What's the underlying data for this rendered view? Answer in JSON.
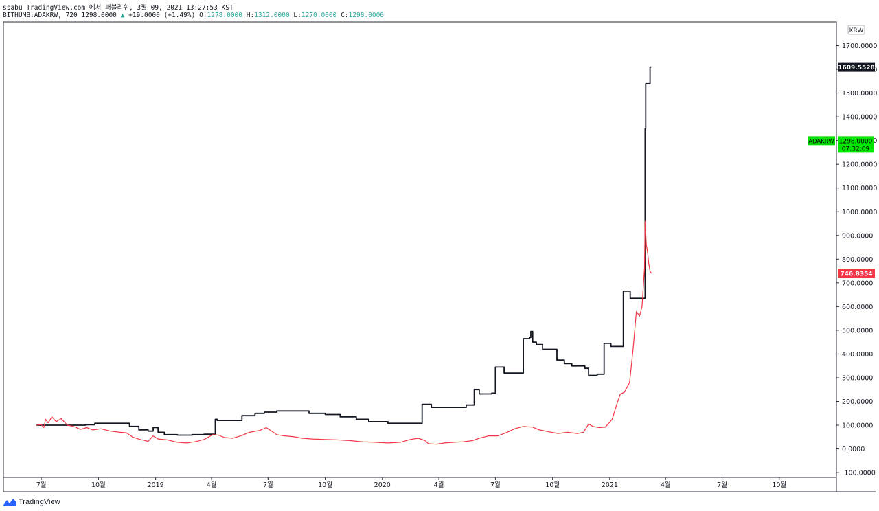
{
  "header": {
    "publish_line": "ssabu TradingView.com 에서 퍼블리쉬, 3월 09, 2021 13:27:53 KST",
    "symbol": "BITHUMB:ADAKRW, 720",
    "last": "1298.0000",
    "change_icon": "up-triangle-icon",
    "change": "+19.0000 (+1.49%)",
    "open_label": "O:",
    "open": "1278.0000",
    "high_label": "H:",
    "high": "1312.0000",
    "low_label": "L:",
    "low": "1270.0000",
    "close_label": "C:",
    "close": "1298.0000"
  },
  "footer": {
    "logo_text": "TradingView",
    "logo_icon": "tradingview-logo-icon"
  },
  "colors": {
    "main_series": "#131722",
    "compare_series": "#f23645",
    "current_price_badge": "#00e600",
    "up": "#26a69a"
  },
  "chart_data": {
    "type": "line",
    "title": "",
    "currency": "KRW",
    "y_axis_side": "right",
    "ylim": [
      -120,
      1800
    ],
    "y_ticks": [
      {
        "value": 1700,
        "label": "1700.0000"
      },
      {
        "value": 1600,
        "label": "1600.0000"
      },
      {
        "value": 1500,
        "label": "1500.0000"
      },
      {
        "value": 1400,
        "label": "1400.0000"
      },
      {
        "value": 1300,
        "label": "1300.0000"
      },
      {
        "value": 1200,
        "label": "1200.0000"
      },
      {
        "value": 1100,
        "label": "1100.0000"
      },
      {
        "value": 1000,
        "label": "1000.0000"
      },
      {
        "value": 900,
        "label": "900.0000"
      },
      {
        "value": 800,
        "label": "800.0000"
      },
      {
        "value": 700,
        "label": "700.0000"
      },
      {
        "value": 600,
        "label": "600.0000"
      },
      {
        "value": 500,
        "label": "500.0000"
      },
      {
        "value": 400,
        "label": "400.0000"
      },
      {
        "value": 300,
        "label": "300.0000"
      },
      {
        "value": 200,
        "label": "200.0000"
      },
      {
        "value": 100,
        "label": "100.0000"
      },
      {
        "value": 0,
        "label": "0.0000"
      },
      {
        "value": -100,
        "label": "-100.0000"
      }
    ],
    "x_range": [
      "2018-05-01",
      "2022-01-01"
    ],
    "x_ticks": [
      {
        "date": "2018-07-01",
        "label": "7월"
      },
      {
        "date": "2018-10-01",
        "label": "10월"
      },
      {
        "date": "2019-01-01",
        "label": "2019"
      },
      {
        "date": "2019-04-01",
        "label": "4월"
      },
      {
        "date": "2019-07-01",
        "label": "7월"
      },
      {
        "date": "2019-10-01",
        "label": "10월"
      },
      {
        "date": "2020-01-01",
        "label": "2020"
      },
      {
        "date": "2020-04-01",
        "label": "4월"
      },
      {
        "date": "2020-07-01",
        "label": "7월"
      },
      {
        "date": "2020-10-01",
        "label": "10월"
      },
      {
        "date": "2021-01-01",
        "label": "2021"
      },
      {
        "date": "2021-04-01",
        "label": "4월"
      },
      {
        "date": "2021-07-01",
        "label": "7월"
      },
      {
        "date": "2021-10-01",
        "label": "10월"
      }
    ],
    "series": [
      {
        "type": "step",
        "color": "#131722",
        "last_label": "1609.5528",
        "points": [
          [
            "2018-06-23",
            100
          ],
          [
            "2018-08-20",
            100
          ],
          [
            "2018-09-10",
            102
          ],
          [
            "2018-09-25",
            108
          ],
          [
            "2018-11-05",
            108
          ],
          [
            "2018-11-20",
            95
          ],
          [
            "2018-12-05",
            80
          ],
          [
            "2018-12-20",
            75
          ],
          [
            "2018-12-28",
            90
          ],
          [
            "2019-01-05",
            70
          ],
          [
            "2019-01-15",
            60
          ],
          [
            "2019-02-05",
            58
          ],
          [
            "2019-03-01",
            60
          ],
          [
            "2019-03-20",
            62
          ],
          [
            "2019-04-05",
            62
          ],
          [
            "2019-04-07",
            125
          ],
          [
            "2019-04-10",
            120
          ],
          [
            "2019-05-20",
            140
          ],
          [
            "2019-06-10",
            150
          ],
          [
            "2019-06-25",
            155
          ],
          [
            "2019-07-15",
            160
          ],
          [
            "2019-08-20",
            160
          ],
          [
            "2019-09-05",
            150
          ],
          [
            "2019-10-01",
            145
          ],
          [
            "2019-10-25",
            135
          ],
          [
            "2019-11-20",
            125
          ],
          [
            "2019-12-10",
            115
          ],
          [
            "2020-01-10",
            108
          ],
          [
            "2020-02-20",
            108
          ],
          [
            "2020-03-05",
            188
          ],
          [
            "2020-03-20",
            175
          ],
          [
            "2020-04-25",
            175
          ],
          [
            "2020-05-15",
            185
          ],
          [
            "2020-05-28",
            250
          ],
          [
            "2020-06-05",
            232
          ],
          [
            "2020-06-25",
            235
          ],
          [
            "2020-07-01",
            345
          ],
          [
            "2020-07-15",
            320
          ],
          [
            "2020-07-25",
            320
          ],
          [
            "2020-08-15",
            465
          ],
          [
            "2020-08-25",
            470
          ],
          [
            "2020-08-27",
            495
          ],
          [
            "2020-08-30",
            450
          ],
          [
            "2020-09-05",
            440
          ],
          [
            "2020-09-15",
            420
          ],
          [
            "2020-10-05",
            420
          ],
          [
            "2020-10-08",
            375
          ],
          [
            "2020-10-20",
            360
          ],
          [
            "2020-11-01",
            350
          ],
          [
            "2020-11-15",
            350
          ],
          [
            "2020-11-22",
            340
          ],
          [
            "2020-11-28",
            310
          ],
          [
            "2020-12-12",
            315
          ],
          [
            "2020-12-20",
            315
          ],
          [
            "2020-12-23",
            445
          ],
          [
            "2021-01-03",
            432
          ],
          [
            "2021-01-18",
            432
          ],
          [
            "2021-01-23",
            665
          ],
          [
            "2021-01-30",
            665
          ],
          [
            "2021-02-03",
            635
          ],
          [
            "2021-02-25",
            635
          ],
          [
            "2021-02-27",
            1350
          ],
          [
            "2021-02-28",
            1540
          ],
          [
            "2021-03-05",
            1540
          ],
          [
            "2021-03-07",
            1610
          ],
          [
            "2021-03-09",
            1610
          ]
        ]
      },
      {
        "type": "line",
        "color": "#f23645",
        "last_label": "746.8354",
        "points": [
          [
            "2018-06-23",
            100
          ],
          [
            "2018-07-01",
            102
          ],
          [
            "2018-07-05",
            90
          ],
          [
            "2018-07-08",
            125
          ],
          [
            "2018-07-12",
            110
          ],
          [
            "2018-07-18",
            135
          ],
          [
            "2018-07-25",
            115
          ],
          [
            "2018-08-02",
            128
          ],
          [
            "2018-08-12",
            100
          ],
          [
            "2018-08-22",
            95
          ],
          [
            "2018-09-02",
            82
          ],
          [
            "2018-09-12",
            90
          ],
          [
            "2018-09-22",
            80
          ],
          [
            "2018-10-05",
            85
          ],
          [
            "2018-10-20",
            75
          ],
          [
            "2018-11-05",
            70
          ],
          [
            "2018-11-15",
            68
          ],
          [
            "2018-11-25",
            50
          ],
          [
            "2018-12-07",
            40
          ],
          [
            "2018-12-20",
            32
          ],
          [
            "2018-12-28",
            55
          ],
          [
            "2019-01-05",
            42
          ],
          [
            "2019-01-20",
            38
          ],
          [
            "2019-02-05",
            28
          ],
          [
            "2019-02-20",
            25
          ],
          [
            "2019-03-05",
            30
          ],
          [
            "2019-03-20",
            40
          ],
          [
            "2019-04-03",
            60
          ],
          [
            "2019-04-12",
            58
          ],
          [
            "2019-04-22",
            48
          ],
          [
            "2019-05-05",
            45
          ],
          [
            "2019-05-18",
            55
          ],
          [
            "2019-06-01",
            70
          ],
          [
            "2019-06-18",
            78
          ],
          [
            "2019-06-28",
            90
          ],
          [
            "2019-07-05",
            78
          ],
          [
            "2019-07-15",
            60
          ],
          [
            "2019-07-28",
            55
          ],
          [
            "2019-08-10",
            52
          ],
          [
            "2019-08-25",
            45
          ],
          [
            "2019-09-10",
            42
          ],
          [
            "2019-10-01",
            40
          ],
          [
            "2019-10-20",
            38
          ],
          [
            "2019-11-10",
            35
          ],
          [
            "2019-11-30",
            30
          ],
          [
            "2019-12-20",
            28
          ],
          [
            "2020-01-10",
            25
          ],
          [
            "2020-01-30",
            28
          ],
          [
            "2020-02-15",
            40
          ],
          [
            "2020-02-28",
            45
          ],
          [
            "2020-03-10",
            35
          ],
          [
            "2020-03-15",
            22
          ],
          [
            "2020-03-28",
            20
          ],
          [
            "2020-04-10",
            25
          ],
          [
            "2020-04-25",
            28
          ],
          [
            "2020-05-10",
            30
          ],
          [
            "2020-05-25",
            35
          ],
          [
            "2020-06-05",
            45
          ],
          [
            "2020-06-20",
            55
          ],
          [
            "2020-07-05",
            55
          ],
          [
            "2020-07-20",
            70
          ],
          [
            "2020-08-01",
            85
          ],
          [
            "2020-08-15",
            95
          ],
          [
            "2020-08-30",
            92
          ],
          [
            "2020-09-10",
            80
          ],
          [
            "2020-09-25",
            72
          ],
          [
            "2020-10-10",
            65
          ],
          [
            "2020-10-25",
            70
          ],
          [
            "2020-11-10",
            65
          ],
          [
            "2020-11-20",
            70
          ],
          [
            "2020-11-28",
            105
          ],
          [
            "2020-12-05",
            95
          ],
          [
            "2020-12-15",
            90
          ],
          [
            "2020-12-25",
            92
          ],
          [
            "2021-01-05",
            125
          ],
          [
            "2021-01-12",
            185
          ],
          [
            "2021-01-18",
            230
          ],
          [
            "2021-01-25",
            240
          ],
          [
            "2021-02-02",
            280
          ],
          [
            "2021-02-08",
            430
          ],
          [
            "2021-02-13",
            580
          ],
          [
            "2021-02-18",
            560
          ],
          [
            "2021-02-22",
            600
          ],
          [
            "2021-02-26",
            760
          ],
          [
            "2021-02-27",
            960
          ],
          [
            "2021-03-01",
            860
          ],
          [
            "2021-03-03",
            830
          ],
          [
            "2021-03-05",
            780
          ],
          [
            "2021-03-07",
            750
          ],
          [
            "2021-03-09",
            740
          ]
        ]
      }
    ],
    "current_price": {
      "label": "ADAKRW",
      "value": "1298.0000",
      "countdown": "07:32:09"
    }
  }
}
